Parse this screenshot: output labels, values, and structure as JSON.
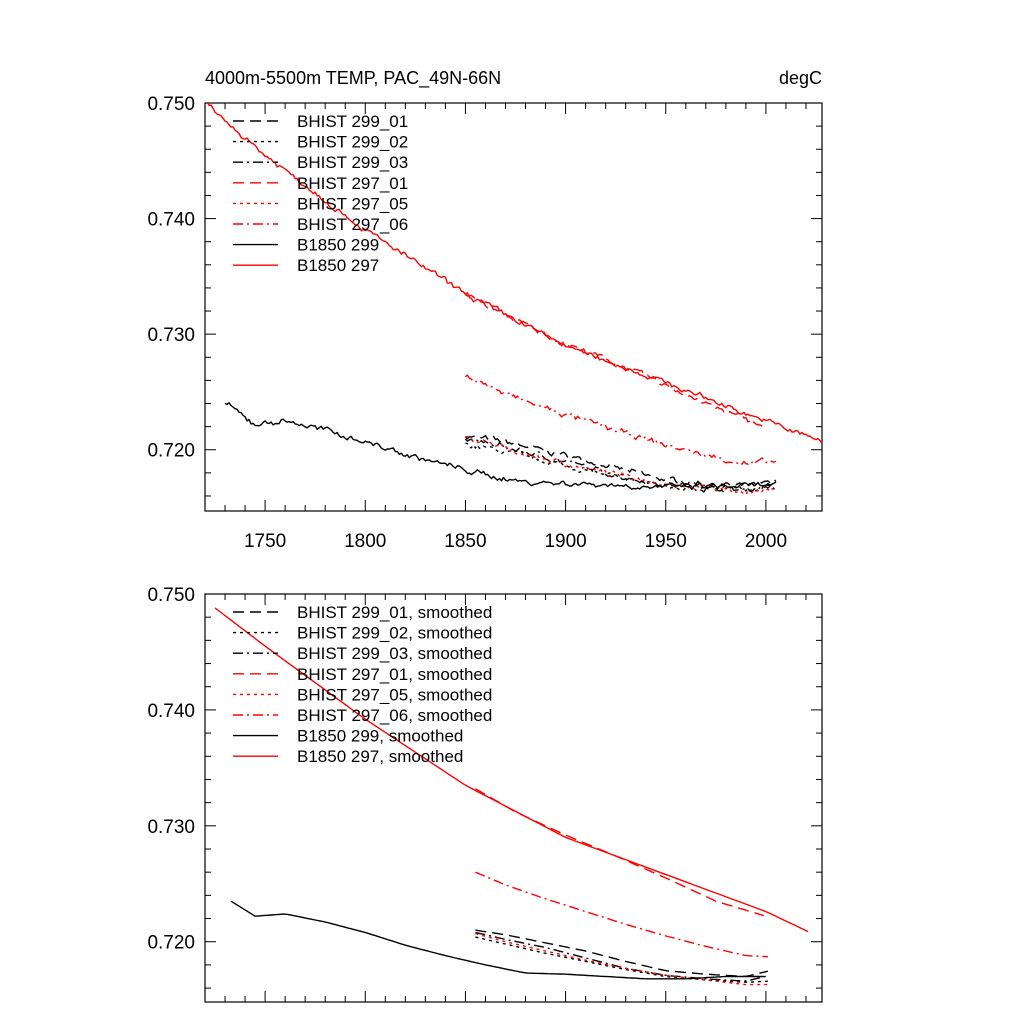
{
  "header": {
    "title_left": "4000m-5500m TEMP, PAC_49N-66N",
    "title_right": "degC"
  },
  "colors": {
    "black": "#000000",
    "red": "#ff0000"
  },
  "chart_data": [
    {
      "type": "line",
      "title": "4000m-5500m TEMP, PAC_49N-66N",
      "units": "degC",
      "xlim": [
        1720,
        2028
      ],
      "ylim": [
        0.7147,
        0.75
      ],
      "yticks": [
        0.72,
        0.73,
        0.74,
        0.75
      ],
      "ytick_labels": [
        "0.720",
        "0.730",
        "0.740",
        "0.750"
      ],
      "xticks": [
        1750,
        1800,
        1850,
        1900,
        1950,
        2000
      ],
      "xtick_labels": [
        "1750",
        "1800",
        "1850",
        "1900",
        "1950",
        "2000"
      ],
      "legend_position": "top-left",
      "noisy": true,
      "series": [
        {
          "name": "BHIST 299_01",
          "color": "#000000",
          "dash": "long-dash",
          "x": [
            1850,
            1870,
            1890,
            1910,
            1930,
            1950,
            1970,
            1990,
            2005
          ],
          "y": [
            0.7212,
            0.7207,
            0.7199,
            0.7191,
            0.7182,
            0.7174,
            0.7171,
            0.7168,
            0.7172
          ]
        },
        {
          "name": "BHIST 299_02",
          "color": "#000000",
          "dash": "dot",
          "x": [
            1850,
            1870,
            1890,
            1910,
            1930,
            1950,
            1970,
            1990,
            2005
          ],
          "y": [
            0.7205,
            0.7198,
            0.719,
            0.7182,
            0.7175,
            0.7169,
            0.7166,
            0.7166,
            0.7168
          ]
        },
        {
          "name": "BHIST 299_03",
          "color": "#000000",
          "dash": "dash-dot",
          "x": [
            1850,
            1870,
            1890,
            1910,
            1930,
            1950,
            1970,
            1990,
            2005
          ],
          "y": [
            0.7209,
            0.7202,
            0.7194,
            0.7185,
            0.7176,
            0.717,
            0.7167,
            0.7165,
            0.717
          ]
        },
        {
          "name": "BHIST 297_01",
          "color": "#ff0000",
          "dash": "long-dash",
          "x": [
            1850,
            1875,
            1900,
            1925,
            1950,
            1975,
            2000
          ],
          "y": [
            0.7335,
            0.7312,
            0.7292,
            0.7275,
            0.7256,
            0.7236,
            0.722
          ]
        },
        {
          "name": "BHIST 297_05",
          "color": "#ff0000",
          "dash": "dot",
          "x": [
            1850,
            1870,
            1890,
            1910,
            1930,
            1950,
            1970,
            1990,
            2005
          ],
          "y": [
            0.721,
            0.7201,
            0.7192,
            0.7184,
            0.7177,
            0.7171,
            0.7167,
            0.7164,
            0.7165
          ]
        },
        {
          "name": "BHIST 297_06",
          "color": "#ff0000",
          "dash": "dash-dot",
          "x": [
            1850,
            1870,
            1890,
            1910,
            1930,
            1950,
            1970,
            1990,
            2005
          ],
          "y": [
            0.7265,
            0.7248,
            0.7236,
            0.7225,
            0.7214,
            0.7204,
            0.7195,
            0.7188,
            0.719
          ]
        },
        {
          "name": "B1850 299",
          "color": "#000000",
          "dash": "solid",
          "x": [
            1730,
            1745,
            1760,
            1780,
            1800,
            1820,
            1840,
            1860,
            1880,
            1900,
            1920,
            1940,
            1960,
            1980,
            2005
          ],
          "y": [
            0.724,
            0.7222,
            0.7225,
            0.7217,
            0.7207,
            0.7196,
            0.7187,
            0.7178,
            0.7172,
            0.7171,
            0.717,
            0.7168,
            0.7168,
            0.7168,
            0.717
          ]
        },
        {
          "name": "B1850 297",
          "color": "#ff0000",
          "dash": "solid",
          "x": [
            1720,
            1750,
            1800,
            1850,
            1900,
            1950,
            2000,
            2028
          ],
          "y": [
            0.75,
            0.7455,
            0.739,
            0.7335,
            0.729,
            0.7258,
            0.7225,
            0.7207
          ]
        }
      ]
    },
    {
      "type": "line",
      "xlim": [
        1720,
        2028
      ],
      "ylim": [
        0.7148,
        0.75
      ],
      "yticks": [
        0.72,
        0.73,
        0.74,
        0.75
      ],
      "ytick_labels": [
        "0.720",
        "0.730",
        "0.740",
        "0.750"
      ],
      "xticks": [
        1750,
        1800,
        1850,
        1900,
        1950,
        2000
      ],
      "legend_position": "top-left",
      "noisy": false,
      "series": [
        {
          "name": "BHIST 299_01, smoothed",
          "color": "#000000",
          "dash": "long-dash",
          "x": [
            1855,
            1870,
            1890,
            1910,
            1930,
            1950,
            1970,
            1990,
            2002
          ],
          "y": [
            0.721,
            0.7206,
            0.7199,
            0.7192,
            0.7183,
            0.7175,
            0.7172,
            0.717,
            0.7175
          ]
        },
        {
          "name": "BHIST 299_02, smoothed",
          "color": "#000000",
          "dash": "dot",
          "x": [
            1855,
            1870,
            1890,
            1910,
            1930,
            1950,
            1970,
            1990,
            2002
          ],
          "y": [
            0.7204,
            0.7198,
            0.719,
            0.7183,
            0.7176,
            0.717,
            0.7167,
            0.7165,
            0.7166
          ]
        },
        {
          "name": "BHIST 299_03, smoothed",
          "color": "#000000",
          "dash": "dash-dot",
          "x": [
            1855,
            1870,
            1890,
            1910,
            1930,
            1950,
            1970,
            1990,
            2002
          ],
          "y": [
            0.7208,
            0.7202,
            0.7195,
            0.7186,
            0.7177,
            0.7171,
            0.7168,
            0.7166,
            0.7171
          ]
        },
        {
          "name": "BHIST 297_01, smoothed",
          "color": "#ff0000",
          "dash": "long-dash",
          "x": [
            1855,
            1875,
            1900,
            1925,
            1950,
            1975,
            2000
          ],
          "y": [
            0.7332,
            0.7312,
            0.7292,
            0.7274,
            0.7255,
            0.7235,
            0.7222
          ]
        },
        {
          "name": "BHIST 297_05, smoothed",
          "color": "#ff0000",
          "dash": "dot",
          "x": [
            1855,
            1870,
            1890,
            1910,
            1930,
            1950,
            1970,
            1990,
            2002
          ],
          "y": [
            0.7207,
            0.72,
            0.7192,
            0.7184,
            0.7177,
            0.7171,
            0.7167,
            0.7163,
            0.7163
          ]
        },
        {
          "name": "BHIST 297_06, smoothed",
          "color": "#ff0000",
          "dash": "dash-dot",
          "x": [
            1855,
            1870,
            1890,
            1910,
            1930,
            1950,
            1970,
            1990,
            2002
          ],
          "y": [
            0.726,
            0.7249,
            0.7237,
            0.7226,
            0.7215,
            0.7205,
            0.7196,
            0.7188,
            0.7187
          ]
        },
        {
          "name": "B1850 299, smoothed",
          "color": "#000000",
          "dash": "solid",
          "x": [
            1733,
            1745,
            1760,
            1780,
            1800,
            1820,
            1840,
            1860,
            1880,
            1900,
            1920,
            1940,
            1960,
            1980,
            2000
          ],
          "y": [
            0.7235,
            0.7222,
            0.7224,
            0.7217,
            0.7208,
            0.7197,
            0.7188,
            0.718,
            0.7173,
            0.7172,
            0.717,
            0.7168,
            0.7168,
            0.717,
            0.717
          ]
        },
        {
          "name": "B1850 297, smoothed",
          "color": "#ff0000",
          "dash": "solid",
          "x": [
            1725,
            1750,
            1800,
            1850,
            1900,
            1950,
            2000,
            2022
          ],
          "y": [
            0.7488,
            0.7455,
            0.7392,
            0.7335,
            0.729,
            0.7258,
            0.7226,
            0.7208
          ]
        }
      ]
    }
  ]
}
